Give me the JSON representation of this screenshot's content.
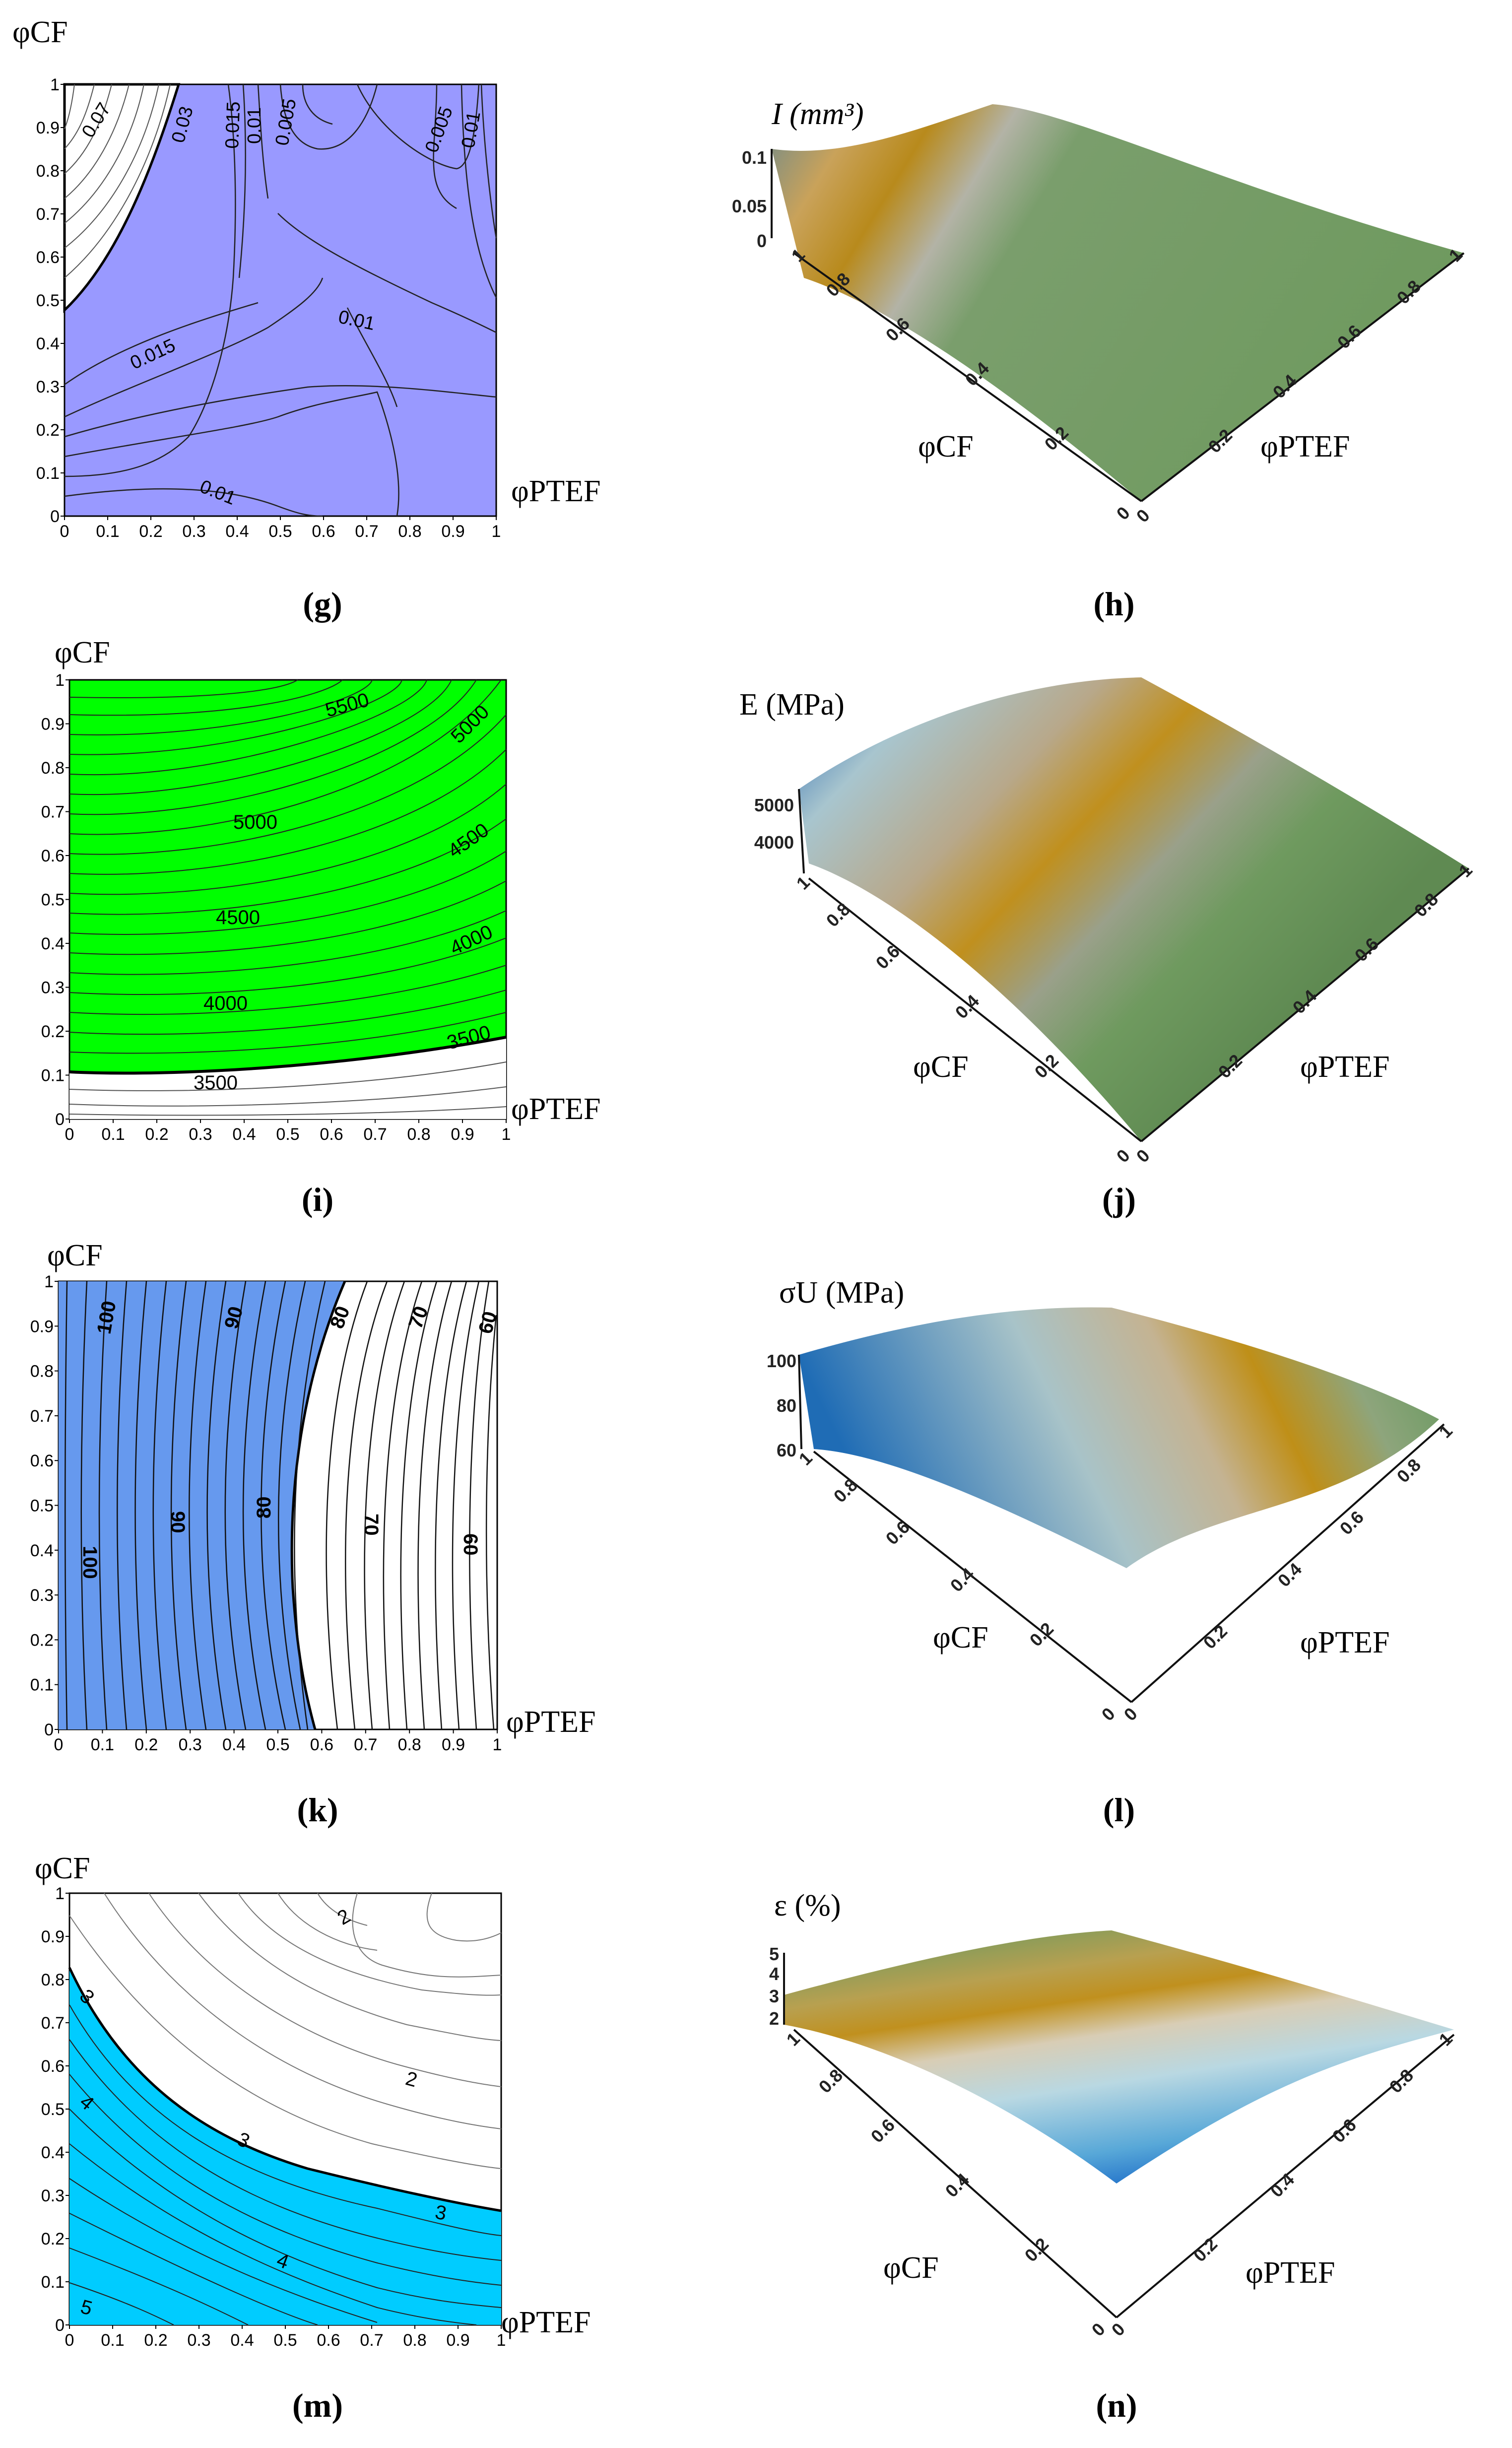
{
  "figure": {
    "panels": [
      {
        "id": "g",
        "caption": "(g)"
      },
      {
        "id": "h",
        "caption": "(h)"
      },
      {
        "id": "i",
        "caption": "(i)"
      },
      {
        "id": "j",
        "caption": "(j)"
      },
      {
        "id": "k",
        "caption": "(k)"
      },
      {
        "id": "l",
        "caption": "(l)"
      },
      {
        "id": "m",
        "caption": "(m)"
      },
      {
        "id": "n",
        "caption": "(n)"
      }
    ]
  },
  "chart_data": [
    {
      "panel": "g",
      "type": "contour",
      "title": "",
      "xlabel": "φPTEF",
      "ylabel": "φCF",
      "xlim": [
        0,
        1
      ],
      "ylim": [
        0,
        1
      ],
      "xticks": [
        "0",
        "0.1",
        "0.2",
        "0.3",
        "0.4",
        "0.5",
        "0.6",
        "0.7",
        "0.8",
        "0.9",
        "1"
      ],
      "yticks": [
        "0",
        "0.1",
        "0.2",
        "0.3",
        "0.4",
        "0.5",
        "0.6",
        "0.7",
        "0.8",
        "0.9",
        "1"
      ],
      "fill_color": "#9999ff",
      "contour_labels": [
        "0.07",
        "0.03",
        "0.015",
        "0.01",
        "0.005",
        "0.005",
        "0.01",
        "0.01",
        "0.015",
        "0.01"
      ],
      "threshold": 0.03
    },
    {
      "panel": "h",
      "type": "surface",
      "zlabel": "I (mm³)",
      "xlabel": "φPTEF",
      "ylabel": "φCF",
      "zticks": [
        "0",
        "0.05",
        "0.1"
      ],
      "xticks": [
        "0",
        "0.2",
        "0.4",
        "0.6",
        "0.8",
        "1"
      ],
      "yticks": [
        "0",
        "0.2",
        "0.4",
        "0.6",
        "0.8",
        "1"
      ]
    },
    {
      "panel": "i",
      "type": "contour",
      "xlabel": "φPTEF",
      "ylabel": "φCF",
      "xlim": [
        0,
        1
      ],
      "ylim": [
        0,
        1
      ],
      "xticks": [
        "0",
        "0.1",
        "0.2",
        "0.3",
        "0.4",
        "0.5",
        "0.6",
        "0.7",
        "0.8",
        "0.9",
        "1"
      ],
      "yticks": [
        "0",
        "0.1",
        "0.2",
        "0.3",
        "0.4",
        "0.5",
        "0.6",
        "0.7",
        "0.8",
        "0.9",
        "1"
      ],
      "fill_color": "#00ff00",
      "contour_labels": [
        "5500",
        "5000",
        "5000",
        "4500",
        "4500",
        "4000",
        "4000",
        "3500",
        "3500"
      ],
      "threshold": 3500
    },
    {
      "panel": "j",
      "type": "surface",
      "zlabel": "E (MPa)",
      "xlabel": "φPTEF",
      "ylabel": "φCF",
      "zticks": [
        "4000",
        "5000"
      ],
      "xticks": [
        "0",
        "0.2",
        "0.4",
        "0.6",
        "0.8",
        "1"
      ],
      "yticks": [
        "0",
        "0.2",
        "0.4",
        "0.6",
        "0.8",
        "1"
      ]
    },
    {
      "panel": "k",
      "type": "contour",
      "xlabel": "φPTEF",
      "ylabel": "φCF",
      "xlim": [
        0,
        1
      ],
      "ylim": [
        0,
        1
      ],
      "xticks": [
        "0",
        "0.1",
        "0.2",
        "0.3",
        "0.4",
        "0.5",
        "0.6",
        "0.7",
        "0.8",
        "0.9",
        "1"
      ],
      "yticks": [
        "0",
        "0.1",
        "0.2",
        "0.3",
        "0.4",
        "0.5",
        "0.6",
        "0.7",
        "0.8",
        "0.9",
        "1"
      ],
      "fill_color": "#6699ee",
      "contour_labels": [
        "100",
        "90",
        "80",
        "70",
        "60",
        "100",
        "90",
        "80",
        "70",
        "60"
      ],
      "threshold": 80
    },
    {
      "panel": "l",
      "type": "surface",
      "zlabel": "σU (MPa)",
      "xlabel": "φPTEF",
      "ylabel": "φCF",
      "zticks": [
        "60",
        "80",
        "100"
      ],
      "xticks": [
        "0",
        "0.2",
        "0.4",
        "0.6",
        "0.8",
        "1"
      ],
      "yticks": [
        "0",
        "0.2",
        "0.4",
        "0.6",
        "0.8",
        "1"
      ]
    },
    {
      "panel": "m",
      "type": "contour",
      "xlabel": "φPTEF",
      "ylabel": "φCF",
      "xlim": [
        0,
        1
      ],
      "ylim": [
        0,
        1
      ],
      "xticks": [
        "0",
        "0.1",
        "0.2",
        "0.3",
        "0.4",
        "0.5",
        "0.6",
        "0.7",
        "0.8",
        "0.9",
        "1"
      ],
      "yticks": [
        "0",
        "0.1",
        "0.2",
        "0.3",
        "0.4",
        "0.5",
        "0.6",
        "0.7",
        "0.8",
        "0.9",
        "1"
      ],
      "fill_color": "#00ccff",
      "contour_labels": [
        "2",
        "2",
        "3",
        "3",
        "3",
        "4",
        "4",
        "5"
      ],
      "threshold": 3
    },
    {
      "panel": "n",
      "type": "surface",
      "zlabel": "ε (%)",
      "xlabel": "φPTEF",
      "ylabel": "φCF",
      "zticks": [
        "2",
        "3",
        "4",
        "5"
      ],
      "xticks": [
        "0",
        "0.2",
        "0.4",
        "0.6",
        "0.8",
        "1"
      ],
      "yticks": [
        "0",
        "0.2",
        "0.4",
        "0.6",
        "0.8",
        "1"
      ]
    }
  ]
}
